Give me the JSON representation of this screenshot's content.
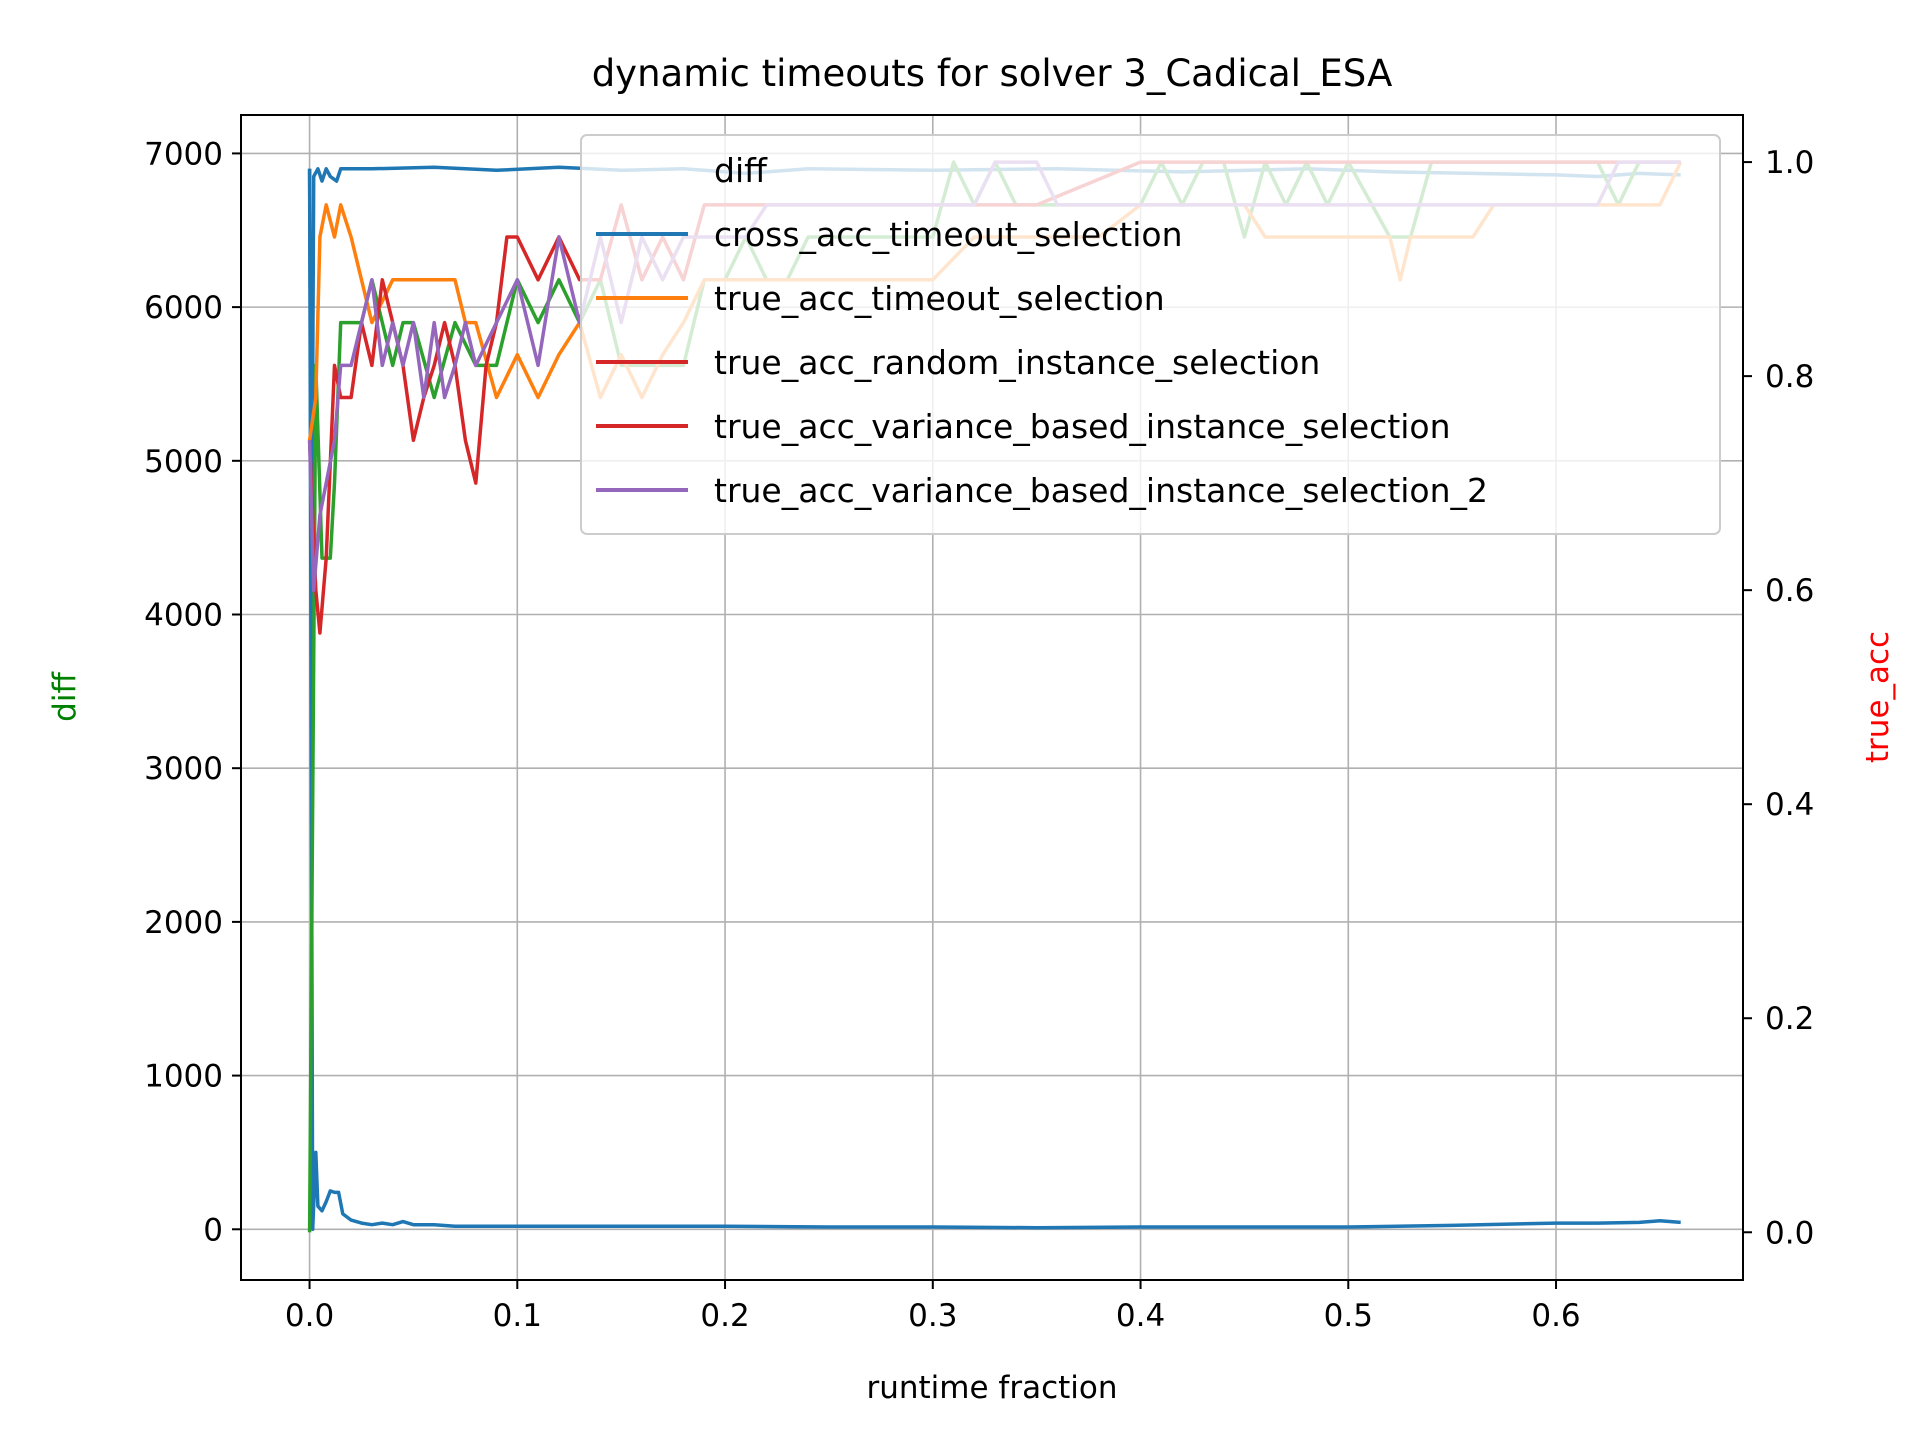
{
  "chart_data": {
    "type": "line",
    "title": "dynamic timeouts for solver 3_Cadical_ESA",
    "xlabel": "runtime fraction",
    "ylabel_left": "diff",
    "ylabel_right": "true_acc",
    "ylabel_left_color": "#008000",
    "ylabel_right_color": "#ff0000",
    "xlim": [
      -0.033,
      0.69
    ],
    "ylim_left": [
      -330,
      7250
    ],
    "ylim_right": [
      -0.0446,
      1.044
    ],
    "x_ticks": [
      "0.0",
      "0.1",
      "0.2",
      "0.3",
      "0.4",
      "0.5",
      "0.6"
    ],
    "y_left_ticks": [
      "0",
      "1000",
      "2000",
      "3000",
      "4000",
      "5000",
      "6000",
      "7000"
    ],
    "y_right_ticks": [
      "0.0",
      "0.2",
      "0.4",
      "0.6",
      "0.8",
      "1.0"
    ],
    "grid": true,
    "legend_position": "upper right",
    "legend": [
      {
        "label": "diff",
        "color": null
      },
      {
        "label": "cross_acc_timeout_selection",
        "color": "#1f77b4"
      },
      {
        "label": "true_acc_timeout_selection",
        "color": "#ff7f0e"
      },
      {
        "label": "true_acc_random_instance_selection",
        "color": "#d62728"
      },
      {
        "label": "true_acc_variance_based_instance_selection",
        "color": "#d62728"
      },
      {
        "label": "true_acc_variance_based_instance_selection_2",
        "color": "#9467bd"
      }
    ],
    "series": [
      {
        "color": "#1f77b4",
        "axis": "left",
        "points": [
          [
            0,
            6900
          ],
          [
            0.0015,
            0
          ],
          [
            0.003,
            500
          ],
          [
            0.004,
            150
          ],
          [
            0.006,
            120
          ],
          [
            0.008,
            180
          ],
          [
            0.01,
            250
          ],
          [
            0.012,
            240
          ],
          [
            0.014,
            240
          ],
          [
            0.016,
            100
          ],
          [
            0.02,
            60
          ],
          [
            0.025,
            40
          ],
          [
            0.03,
            30
          ],
          [
            0.035,
            40
          ],
          [
            0.04,
            30
          ],
          [
            0.045,
            50
          ],
          [
            0.05,
            30
          ],
          [
            0.06,
            30
          ],
          [
            0.07,
            20
          ],
          [
            0.08,
            20
          ],
          [
            0.1,
            20
          ],
          [
            0.15,
            20
          ],
          [
            0.2,
            20
          ],
          [
            0.25,
            15
          ],
          [
            0.3,
            15
          ],
          [
            0.35,
            10
          ],
          [
            0.4,
            15
          ],
          [
            0.45,
            15
          ],
          [
            0.5,
            15
          ],
          [
            0.55,
            25
          ],
          [
            0.6,
            40
          ],
          [
            0.62,
            40
          ],
          [
            0.64,
            45
          ],
          [
            0.65,
            55
          ],
          [
            0.66,
            45
          ]
        ]
      },
      {
        "color": "#1f77b4",
        "axis": "left",
        "points": [
          [
            0,
            6900
          ],
          [
            0.001,
            4100
          ],
          [
            0.002,
            6850
          ],
          [
            0.004,
            6900
          ],
          [
            0.006,
            6820
          ],
          [
            0.008,
            6900
          ],
          [
            0.01,
            6850
          ],
          [
            0.013,
            6820
          ],
          [
            0.015,
            6900
          ],
          [
            0.03,
            6900
          ],
          [
            0.06,
            6910
          ],
          [
            0.09,
            6890
          ],
          [
            0.12,
            6910
          ],
          [
            0.15,
            6890
          ],
          [
            0.18,
            6900
          ],
          [
            0.21,
            6870
          ],
          [
            0.24,
            6900
          ],
          [
            0.3,
            6890
          ],
          [
            0.36,
            6900
          ],
          [
            0.42,
            6880
          ],
          [
            0.48,
            6900
          ],
          [
            0.52,
            6880
          ],
          [
            0.56,
            6870
          ],
          [
            0.6,
            6860
          ],
          [
            0.62,
            6850
          ],
          [
            0.64,
            6870
          ],
          [
            0.66,
            6860
          ]
        ]
      },
      {
        "color": "#2ca02c",
        "axis": "right",
        "points": [
          [
            0,
            0
          ],
          [
            0.003,
            0.81
          ],
          [
            0.006,
            0.63
          ],
          [
            0.01,
            0.63
          ],
          [
            0.012,
            0.7
          ],
          [
            0.015,
            0.85
          ],
          [
            0.02,
            0.85
          ],
          [
            0.025,
            0.85
          ],
          [
            0.03,
            0.89
          ],
          [
            0.04,
            0.81
          ],
          [
            0.045,
            0.85
          ],
          [
            0.05,
            0.85
          ],
          [
            0.06,
            0.78
          ],
          [
            0.07,
            0.85
          ],
          [
            0.08,
            0.81
          ],
          [
            0.09,
            0.81
          ],
          [
            0.1,
            0.89
          ],
          [
            0.11,
            0.85
          ],
          [
            0.12,
            0.89
          ],
          [
            0.13,
            0.85
          ],
          [
            0.14,
            0.89
          ],
          [
            0.15,
            0.81
          ],
          [
            0.16,
            0.81
          ],
          [
            0.18,
            0.81
          ],
          [
            0.19,
            0.89
          ],
          [
            0.2,
            0.89
          ],
          [
            0.21,
            0.93
          ],
          [
            0.22,
            0.89
          ],
          [
            0.23,
            0.89
          ],
          [
            0.24,
            0.93
          ],
          [
            0.26,
            0.93
          ],
          [
            0.28,
            0.93
          ],
          [
            0.3,
            0.93
          ],
          [
            0.31,
            1.0
          ],
          [
            0.32,
            0.96
          ],
          [
            0.33,
            1.0
          ],
          [
            0.34,
            0.96
          ],
          [
            0.36,
            0.96
          ],
          [
            0.38,
            0.96
          ],
          [
            0.4,
            0.96
          ],
          [
            0.41,
            1.0
          ],
          [
            0.42,
            0.96
          ],
          [
            0.43,
            1.0
          ],
          [
            0.44,
            1.0
          ],
          [
            0.45,
            0.93
          ],
          [
            0.46,
            1.0
          ],
          [
            0.47,
            0.96
          ],
          [
            0.48,
            1.0
          ],
          [
            0.49,
            0.96
          ],
          [
            0.5,
            1.0
          ],
          [
            0.52,
            0.93
          ],
          [
            0.53,
            0.93
          ],
          [
            0.54,
            1.0
          ],
          [
            0.56,
            1.0
          ],
          [
            0.58,
            1.0
          ],
          [
            0.6,
            1.0
          ],
          [
            0.62,
            1.0
          ],
          [
            0.63,
            0.96
          ],
          [
            0.64,
            1.0
          ],
          [
            0.66,
            1.0
          ]
        ]
      },
      {
        "color": "#ff7f0e",
        "axis": "right",
        "points": [
          [
            0,
            0.74
          ],
          [
            0.003,
            0.78
          ],
          [
            0.005,
            0.93
          ],
          [
            0.008,
            0.96
          ],
          [
            0.012,
            0.93
          ],
          [
            0.015,
            0.96
          ],
          [
            0.02,
            0.93
          ],
          [
            0.025,
            0.89
          ],
          [
            0.03,
            0.85
          ],
          [
            0.04,
            0.89
          ],
          [
            0.06,
            0.89
          ],
          [
            0.07,
            0.89
          ],
          [
            0.075,
            0.85
          ],
          [
            0.08,
            0.85
          ],
          [
            0.09,
            0.78
          ],
          [
            0.1,
            0.82
          ],
          [
            0.11,
            0.78
          ],
          [
            0.12,
            0.82
          ],
          [
            0.13,
            0.85
          ],
          [
            0.14,
            0.78
          ],
          [
            0.15,
            0.82
          ],
          [
            0.16,
            0.78
          ],
          [
            0.17,
            0.82
          ],
          [
            0.18,
            0.85
          ],
          [
            0.19,
            0.89
          ],
          [
            0.2,
            0.89
          ],
          [
            0.25,
            0.89
          ],
          [
            0.3,
            0.89
          ],
          [
            0.32,
            0.93
          ],
          [
            0.38,
            0.93
          ],
          [
            0.4,
            0.96
          ],
          [
            0.45,
            0.96
          ],
          [
            0.46,
            0.93
          ],
          [
            0.5,
            0.93
          ],
          [
            0.52,
            0.93
          ],
          [
            0.525,
            0.89
          ],
          [
            0.53,
            0.93
          ],
          [
            0.56,
            0.93
          ],
          [
            0.57,
            0.96
          ],
          [
            0.6,
            0.96
          ],
          [
            0.65,
            0.96
          ],
          [
            0.66,
            1.0
          ]
        ]
      },
      {
        "color": "#d62728",
        "axis": "right",
        "points": [
          [
            0,
            0.74
          ],
          [
            0.003,
            0.6
          ],
          [
            0.005,
            0.56
          ],
          [
            0.008,
            0.63
          ],
          [
            0.012,
            0.81
          ],
          [
            0.015,
            0.78
          ],
          [
            0.02,
            0.78
          ],
          [
            0.025,
            0.85
          ],
          [
            0.03,
            0.81
          ],
          [
            0.035,
            0.89
          ],
          [
            0.04,
            0.85
          ],
          [
            0.045,
            0.81
          ],
          [
            0.05,
            0.74
          ],
          [
            0.055,
            0.78
          ],
          [
            0.06,
            0.81
          ],
          [
            0.065,
            0.85
          ],
          [
            0.07,
            0.81
          ],
          [
            0.075,
            0.74
          ],
          [
            0.08,
            0.7
          ],
          [
            0.085,
            0.81
          ],
          [
            0.09,
            0.85
          ],
          [
            0.095,
            0.93
          ],
          [
            0.1,
            0.93
          ],
          [
            0.11,
            0.89
          ],
          [
            0.12,
            0.93
          ],
          [
            0.13,
            0.89
          ],
          [
            0.14,
            0.89
          ],
          [
            0.15,
            0.96
          ],
          [
            0.16,
            0.89
          ],
          [
            0.17,
            0.93
          ],
          [
            0.18,
            0.89
          ],
          [
            0.19,
            0.96
          ],
          [
            0.2,
            0.96
          ],
          [
            0.25,
            0.96
          ],
          [
            0.3,
            0.96
          ],
          [
            0.35,
            0.96
          ],
          [
            0.4,
            1.0
          ],
          [
            0.45,
            1.0
          ],
          [
            0.5,
            1.0
          ],
          [
            0.55,
            1.0
          ],
          [
            0.6,
            1.0
          ],
          [
            0.66,
            1.0
          ]
        ]
      },
      {
        "color": "#9467bd",
        "axis": "right",
        "points": [
          [
            0,
            0.74
          ],
          [
            0.002,
            0.6
          ],
          [
            0.005,
            0.67
          ],
          [
            0.008,
            0.7
          ],
          [
            0.012,
            0.74
          ],
          [
            0.015,
            0.81
          ],
          [
            0.02,
            0.81
          ],
          [
            0.025,
            0.85
          ],
          [
            0.03,
            0.89
          ],
          [
            0.035,
            0.81
          ],
          [
            0.04,
            0.85
          ],
          [
            0.045,
            0.81
          ],
          [
            0.05,
            0.85
          ],
          [
            0.055,
            0.78
          ],
          [
            0.06,
            0.85
          ],
          [
            0.065,
            0.78
          ],
          [
            0.07,
            0.81
          ],
          [
            0.075,
            0.85
          ],
          [
            0.08,
            0.81
          ],
          [
            0.09,
            0.85
          ],
          [
            0.1,
            0.89
          ],
          [
            0.11,
            0.81
          ],
          [
            0.12,
            0.93
          ],
          [
            0.13,
            0.85
          ],
          [
            0.14,
            0.93
          ],
          [
            0.15,
            0.85
          ],
          [
            0.16,
            0.93
          ],
          [
            0.17,
            0.89
          ],
          [
            0.18,
            0.93
          ],
          [
            0.2,
            0.93
          ],
          [
            0.21,
            0.93
          ],
          [
            0.22,
            0.96
          ],
          [
            0.3,
            0.96
          ],
          [
            0.32,
            0.96
          ],
          [
            0.33,
            1.0
          ],
          [
            0.35,
            1.0
          ],
          [
            0.36,
            0.96
          ],
          [
            0.4,
            0.96
          ],
          [
            0.5,
            0.96
          ],
          [
            0.6,
            0.96
          ],
          [
            0.62,
            0.96
          ],
          [
            0.63,
            1.0
          ],
          [
            0.66,
            1.0
          ]
        ]
      }
    ]
  }
}
